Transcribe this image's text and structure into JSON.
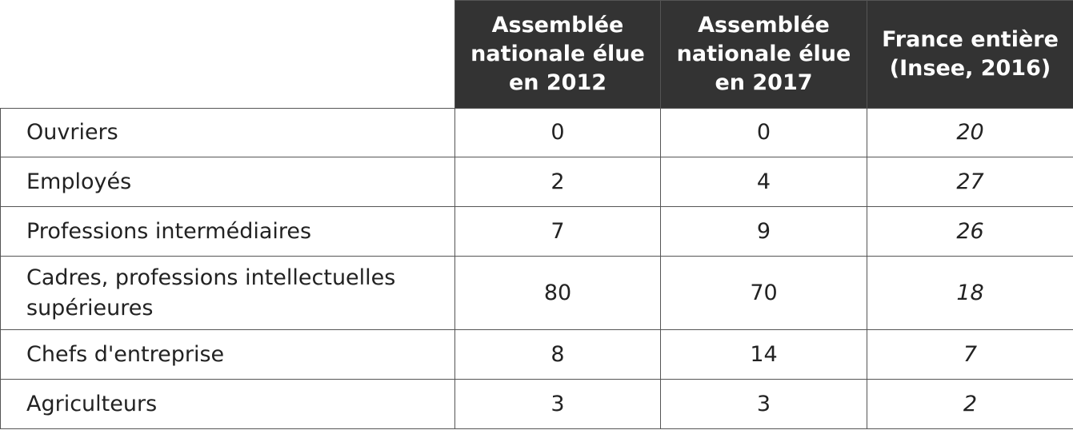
{
  "table": {
    "header": [
      "Assemblée nationale élue en 2012",
      "Assemblée nationale élue en 2017",
      "France entière (Insee, 2016)"
    ],
    "rows": [
      [
        "Ouvriers",
        0,
        0,
        20
      ],
      [
        "Employés",
        2,
        4,
        27
      ],
      [
        "Professions intermédiaires",
        7,
        9,
        26
      ],
      [
        "Cadres, professions intellectuelles supérieures",
        80,
        70,
        18
      ],
      [
        "Chefs d'entreprise",
        8,
        14,
        7
      ],
      [
        "Agriculteurs",
        3,
        3,
        2
      ]
    ]
  }
}
